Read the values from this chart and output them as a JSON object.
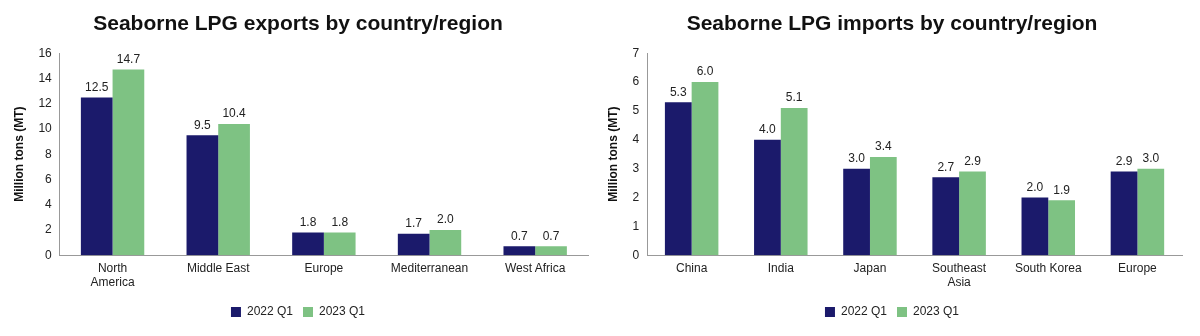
{
  "chart_data": [
    {
      "type": "bar",
      "title": "Seaborne LPG exports by country/region",
      "ylabel": "Million tons (MT)",
      "categories": [
        "North America",
        "Middle East",
        "Europe",
        "Mediterranean",
        "West Africa"
      ],
      "series": [
        {
          "name": "2022 Q1",
          "color": "#1b1a6b",
          "values": [
            12.5,
            9.5,
            1.8,
            1.7,
            0.7
          ],
          "value_labels": [
            "12.5",
            "9.5",
            "1.8",
            "1.7",
            "0.7"
          ]
        },
        {
          "name": "2023 Q1",
          "color": "#7ec283",
          "values": [
            14.7,
            10.4,
            1.8,
            2.0,
            0.7
          ],
          "value_labels": [
            "14.7",
            "10.4",
            "1.8",
            "2.0",
            "0.7"
          ]
        }
      ],
      "ylim": [
        0,
        16
      ],
      "yticks": [
        0,
        2,
        4,
        6,
        8,
        10,
        12,
        14,
        16
      ],
      "grid": false,
      "legend": "bottom"
    },
    {
      "type": "bar",
      "title": "Seaborne LPG imports by country/region",
      "ylabel": "Million tons (MT)",
      "categories": [
        "China",
        "India",
        "Japan",
        "Southeast Asia",
        "South Korea",
        "Europe"
      ],
      "series": [
        {
          "name": "2022 Q1",
          "color": "#1b1a6b",
          "values": [
            5.3,
            4.0,
            3.0,
            2.7,
            2.0,
            2.9
          ],
          "value_labels": [
            "5.3",
            "4.0",
            "3.0",
            "2.7",
            "2.0",
            "2.9"
          ]
        },
        {
          "name": "2023 Q1",
          "color": "#7ec283",
          "values": [
            6.0,
            5.1,
            3.4,
            2.9,
            1.9,
            3.0
          ],
          "value_labels": [
            "6.0",
            "5.1",
            "3.4",
            "2.9",
            "1.9",
            "3.0"
          ]
        }
      ],
      "ylim": [
        0,
        7
      ],
      "yticks": [
        0,
        1,
        2,
        3,
        4,
        5,
        6,
        7
      ],
      "grid": false,
      "legend": "bottom"
    }
  ]
}
